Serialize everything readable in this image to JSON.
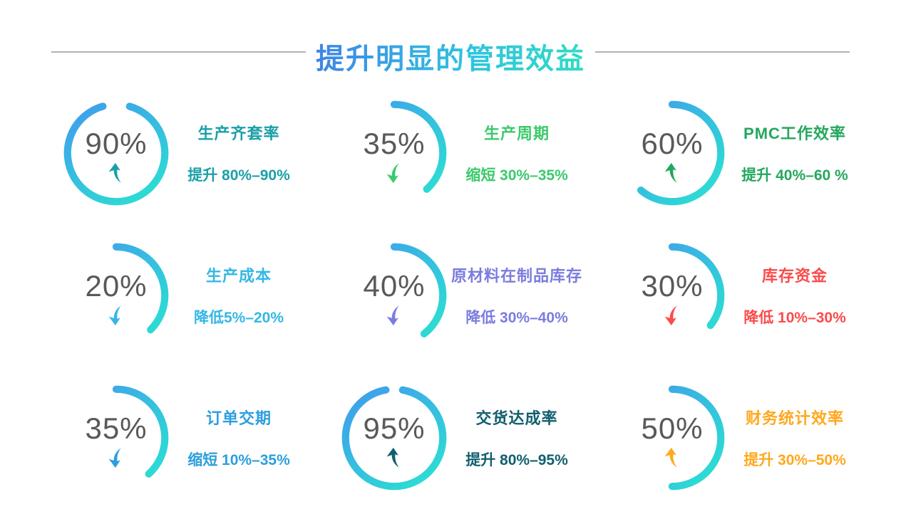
{
  "header": {
    "title": "提升明显的管理效益",
    "title_gradient": [
      "#3E84E8",
      "#30DCC5"
    ],
    "line_color": "#B2B2B2"
  },
  "donut": {
    "arc_gradient": [
      "#3FA0EC",
      "#2CDDD3"
    ],
    "number_color": "#58595B",
    "stroke_width": 10.5
  },
  "metrics": [
    {
      "percent": "90%",
      "trend": "up",
      "arc_start_deg": 16,
      "arc_sweep_deg": 328,
      "title": "生产齐套率",
      "desc": "提升 80%–90%",
      "accent": "#1BA0A8"
    },
    {
      "percent": "35%",
      "trend": "down",
      "arc_start_deg": 0,
      "arc_sweep_deg": 138,
      "title": "生产周期",
      "desc": "缩短 30%–35%",
      "accent": "#3CC96C"
    },
    {
      "percent": "60%",
      "trend": "up",
      "arc_start_deg": 0,
      "arc_sweep_deg": 220,
      "title": "PMC工作效率",
      "desc": "提升 40%–60 %",
      "accent": "#23A75D"
    },
    {
      "percent": "20%",
      "trend": "down",
      "arc_start_deg": 0,
      "arc_sweep_deg": 135,
      "title": "生产成本",
      "desc": "降低5%–20%",
      "accent": "#35B7E5"
    },
    {
      "percent": "40%",
      "trend": "down",
      "arc_start_deg": 0,
      "arc_sweep_deg": 142,
      "title": "原材料在制品库存",
      "desc": "降低 30%–40%",
      "accent": "#7B7CDF"
    },
    {
      "percent": "30%",
      "trend": "down",
      "arc_start_deg": 0,
      "arc_sweep_deg": 128,
      "title": "库存资金",
      "desc": "降低 10%–30%",
      "accent": "#FB4B4B"
    },
    {
      "percent": "35%",
      "trend": "down",
      "arc_start_deg": 0,
      "arc_sweep_deg": 138,
      "title": "订单交期",
      "desc": "缩短 10%–35%",
      "accent": "#2D9EDE"
    },
    {
      "percent": "95%",
      "trend": "up",
      "arc_start_deg": 10,
      "arc_sweep_deg": 340,
      "title": "交货达成率",
      "desc": "提升 80%–95%",
      "accent": "#115F6E"
    },
    {
      "percent": "50%",
      "trend": "up",
      "arc_start_deg": 0,
      "arc_sweep_deg": 180,
      "title": "财务统计效率",
      "desc": "提升 30%–50%",
      "accent": "#FFA81D"
    }
  ],
  "chart_data": {
    "type": "pie",
    "variant": "donut-gauge-grid",
    "title": "提升明显的管理效益",
    "legend_position": "none",
    "grid": "3x3",
    "gauges": [
      {
        "label": "生产齐套率",
        "value_pct": 90,
        "direction": "up",
        "change": "提升 80%–90%"
      },
      {
        "label": "生产周期",
        "value_pct": 35,
        "direction": "down",
        "change": "缩短 30%–35%"
      },
      {
        "label": "PMC工作效率",
        "value_pct": 60,
        "direction": "up",
        "change": "提升 40%–60 %"
      },
      {
        "label": "生产成本",
        "value_pct": 20,
        "direction": "down",
        "change": "降低5%–20%"
      },
      {
        "label": "原材料在制品库存",
        "value_pct": 40,
        "direction": "down",
        "change": "降低 30%–40%"
      },
      {
        "label": "库存资金",
        "value_pct": 30,
        "direction": "down",
        "change": "降低 10%–30%"
      },
      {
        "label": "订单交期",
        "value_pct": 35,
        "direction": "down",
        "change": "缩短 10%–35%"
      },
      {
        "label": "交货达成率",
        "value_pct": 95,
        "direction": "up",
        "change": "提升 80%–95%"
      },
      {
        "label": "财务统计效率",
        "value_pct": 50,
        "direction": "up",
        "change": "提升 30%–50%"
      }
    ]
  }
}
